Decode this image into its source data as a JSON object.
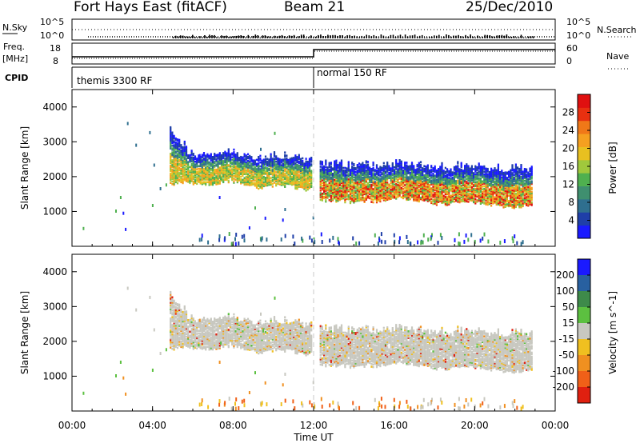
{
  "header": {
    "title": "Fort Hays East (fitACF)",
    "beam": "Beam 21",
    "date": "25/Dec/2010"
  },
  "strips": {
    "nsky_label": "N.Sky",
    "nsky_ticks": [
      "10^5",
      "10^0"
    ],
    "nsearch_label": "N.Search",
    "nsearch_ticks": [
      "10^5",
      "10^0"
    ],
    "freq_label": "Freq.",
    "freq_unit": "[MHz]",
    "freq_ticks": [
      "18",
      "8"
    ],
    "nave_label": "Nave",
    "nave_ticks": [
      "60",
      "0"
    ],
    "cpid_label": "CPID",
    "cpid_segments": [
      "themis 3300 RF",
      "normal 150 RF"
    ]
  },
  "chart_data": [
    {
      "type": "heatmap",
      "title": "",
      "xlabel": "Time UT",
      "ylabel": "Slant Range [km]",
      "xlim": [
        "00:00",
        "24:00"
      ],
      "ylim": [
        0,
        4500
      ],
      "x_ticks": [
        "00:00",
        "04:00",
        "08:00",
        "12:00",
        "16:00",
        "20:00",
        "00:00"
      ],
      "y_ticks": [
        1000,
        2000,
        3000,
        4000
      ],
      "colorbar": {
        "label": "Power [dB]",
        "ticks": [
          4,
          8,
          12,
          16,
          20,
          24,
          28
        ],
        "colors": [
          "#1a1aff",
          "#1f3fa8",
          "#2f6f8f",
          "#3f8f6f",
          "#4fb04f",
          "#a0c83c",
          "#e8c020",
          "#f5a020",
          "#f07818",
          "#e83010",
          "#e01010"
        ]
      },
      "mode_change_time": "12:00",
      "echo_bands": [
        {
          "start": 4.85,
          "end": 11.9,
          "range_low": 1800,
          "range_high": 2600,
          "peak_db": 20
        },
        {
          "start": 12.3,
          "end": 22.8,
          "range_low": 1300,
          "range_high": 2300,
          "peak_db": 28
        }
      ],
      "ground_scatter_band": {
        "start": 0,
        "end": 23,
        "range_low": 100,
        "range_high": 400
      }
    },
    {
      "type": "heatmap",
      "title": "",
      "xlabel": "Time UT",
      "ylabel": "Slant Range [km]",
      "xlim": [
        "00:00",
        "24:00"
      ],
      "ylim": [
        0,
        4500
      ],
      "x_ticks": [
        "00:00",
        "04:00",
        "08:00",
        "12:00",
        "16:00",
        "20:00",
        "00:00"
      ],
      "y_ticks": [
        1000,
        2000,
        3000,
        4000
      ],
      "colorbar": {
        "label": "Velocity [m s^-1]",
        "ticks": [
          "200",
          "100",
          "50",
          "15",
          "-15",
          "-50",
          "-100",
          "-200"
        ],
        "colors": [
          "#1a1aff",
          "#2860a0",
          "#3e8a4a",
          "#5cc040",
          "#c8c8c0",
          "#f0c020",
          "#f09020",
          "#f06018",
          "#e02010"
        ]
      },
      "mode_change_time": "12:00",
      "echo_bands": [
        {
          "start": 4.85,
          "end": 11.9,
          "range_low": 1800,
          "range_high": 2600,
          "dominant": "ground scatter"
        },
        {
          "start": 12.3,
          "end": 22.8,
          "range_low": 1300,
          "range_high": 2300,
          "dominant": "ground scatter"
        }
      ]
    }
  ]
}
